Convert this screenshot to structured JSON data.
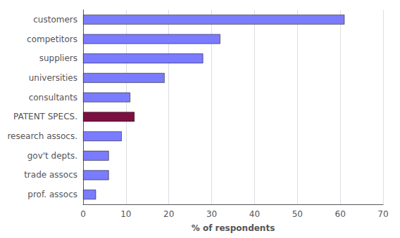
{
  "chart_data": {
    "type": "bar",
    "orientation": "horizontal",
    "categories": [
      "customers",
      "competitors",
      "suppliers",
      "universities",
      "consultants",
      "PATENT SPECS.",
      "research assocs.",
      "gov't depts.",
      "trade assocs",
      "prof. assocs"
    ],
    "values": [
      61,
      32,
      28,
      19,
      11,
      12,
      9,
      6,
      6,
      3
    ],
    "colors": [
      "#7b7bff",
      "#7b7bff",
      "#7b7bff",
      "#7b7bff",
      "#7b7bff",
      "#7b1040",
      "#7b7bff",
      "#7b7bff",
      "#7b7bff",
      "#7b7bff"
    ],
    "xlabel": "% of respondents",
    "xlim": [
      0,
      70
    ],
    "xticks": [
      0,
      10,
      20,
      30,
      40,
      50,
      60,
      70
    ],
    "grid": true
  }
}
